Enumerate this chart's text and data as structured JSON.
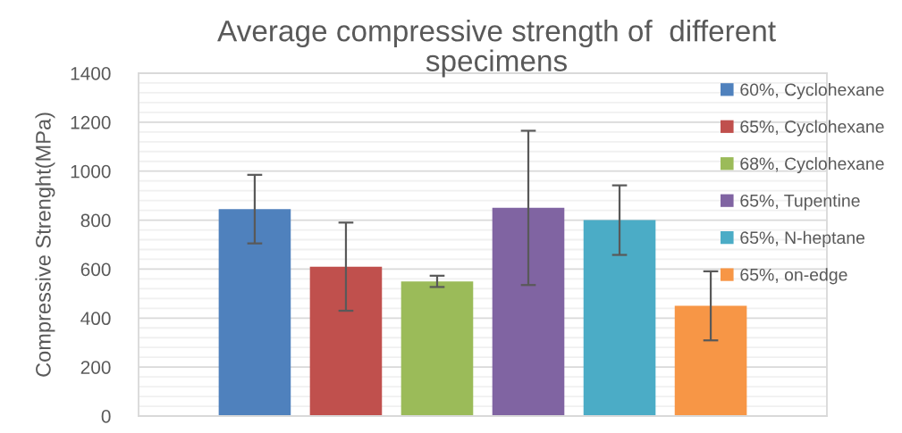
{
  "chart_data": {
    "type": "bar",
    "title": "Average compressive strength of  different specimens",
    "ylabel": "Compressive Strenght(MPa)",
    "categories": [
      null
    ],
    "series": [
      {
        "name": "60%, Cyclohexane",
        "color": "#4f81bd",
        "values": [
          845
        ],
        "errors": [
          140
        ]
      },
      {
        "name": "65%, Cyclohexane",
        "color": "#c0504d",
        "values": [
          610
        ],
        "errors": [
          180
        ]
      },
      {
        "name": "68%, Cyclohexane",
        "color": "#9bbb59",
        "values": [
          550
        ],
        "errors": [
          23
        ]
      },
      {
        "name": "65%, Tupentine",
        "color": "#8064a2",
        "values": [
          850
        ],
        "errors": [
          315
        ]
      },
      {
        "name": "65%, N-heptane",
        "color": "#4bacc6",
        "values": [
          800
        ],
        "errors": [
          142
        ]
      },
      {
        "name": "65%, on-edge",
        "color": "#f79646",
        "values": [
          450
        ],
        "errors": [
          141
        ]
      }
    ],
    "ylim": [
      0,
      1400
    ],
    "yticks": [
      0,
      {
        "value": 40,
        "label": null
      },
      {
        "value": 80,
        "label": null
      },
      {
        "value": 120,
        "label": null
      },
      {
        "value": 160,
        "label": null
      },
      200,
      {
        "value": 240,
        "label": null
      },
      {
        "value": 280,
        "label": null
      },
      {
        "value": 320,
        "label": null
      },
      {
        "value": 360,
        "label": null
      },
      400,
      {
        "value": 440,
        "label": null
      },
      {
        "value": 480,
        "label": null
      },
      {
        "value": 520,
        "label": null
      },
      {
        "value": 560,
        "label": null
      },
      600,
      {
        "value": 640,
        "label": null
      },
      {
        "value": 680,
        "label": null
      },
      {
        "value": 720,
        "label": null
      },
      {
        "value": 760,
        "label": null
      },
      800,
      {
        "value": 840,
        "label": null
      },
      {
        "value": 880,
        "label": null
      },
      {
        "value": 920,
        "label": null
      },
      {
        "value": 960,
        "label": null
      },
      1000,
      {
        "value": 1040,
        "label": null
      },
      {
        "value": 1080,
        "label": null
      },
      {
        "value": 1120,
        "label": null
      },
      {
        "value": 1160,
        "label": null
      },
      1200,
      {
        "value": 1240,
        "label": null
      },
      {
        "value": 1280,
        "label": null
      },
      {
        "value": 1320,
        "label": null
      },
      {
        "value": 1360,
        "label": null
      },
      1400
    ],
    "grid": "y",
    "legend": "right",
    "tick_labels": "y"
  }
}
